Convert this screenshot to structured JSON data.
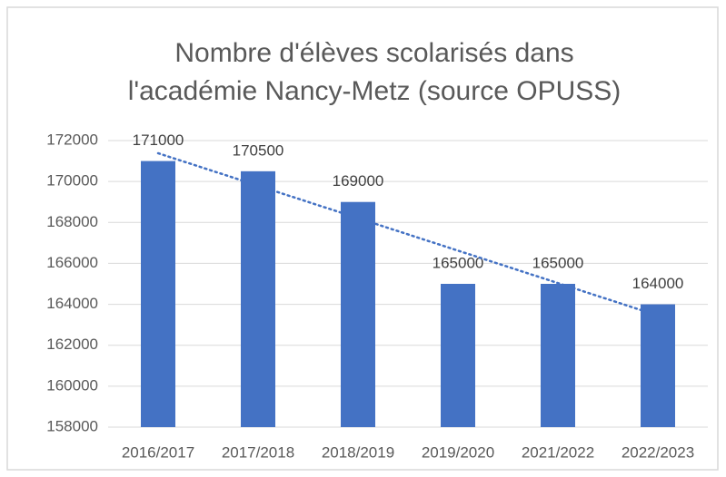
{
  "chart_data": {
    "type": "bar",
    "title": [
      "Nombre d'élèves scolarisés dans",
      "l'académie Nancy-Metz (source OPUSS)"
    ],
    "categories": [
      "2016/2017",
      "2017/2018",
      "2018/2019",
      "2019/2020",
      "2021/2022",
      "2022/2023"
    ],
    "values": [
      171000,
      170500,
      169000,
      165000,
      165000,
      164000
    ],
    "color": "#4472c4",
    "ylim": [
      158000,
      172000
    ],
    "yticks": [
      158000,
      160000,
      162000,
      164000,
      166000,
      168000,
      170000,
      172000
    ],
    "grid": true,
    "trendline": {
      "kind": "linear",
      "color": "#4472c4"
    }
  }
}
